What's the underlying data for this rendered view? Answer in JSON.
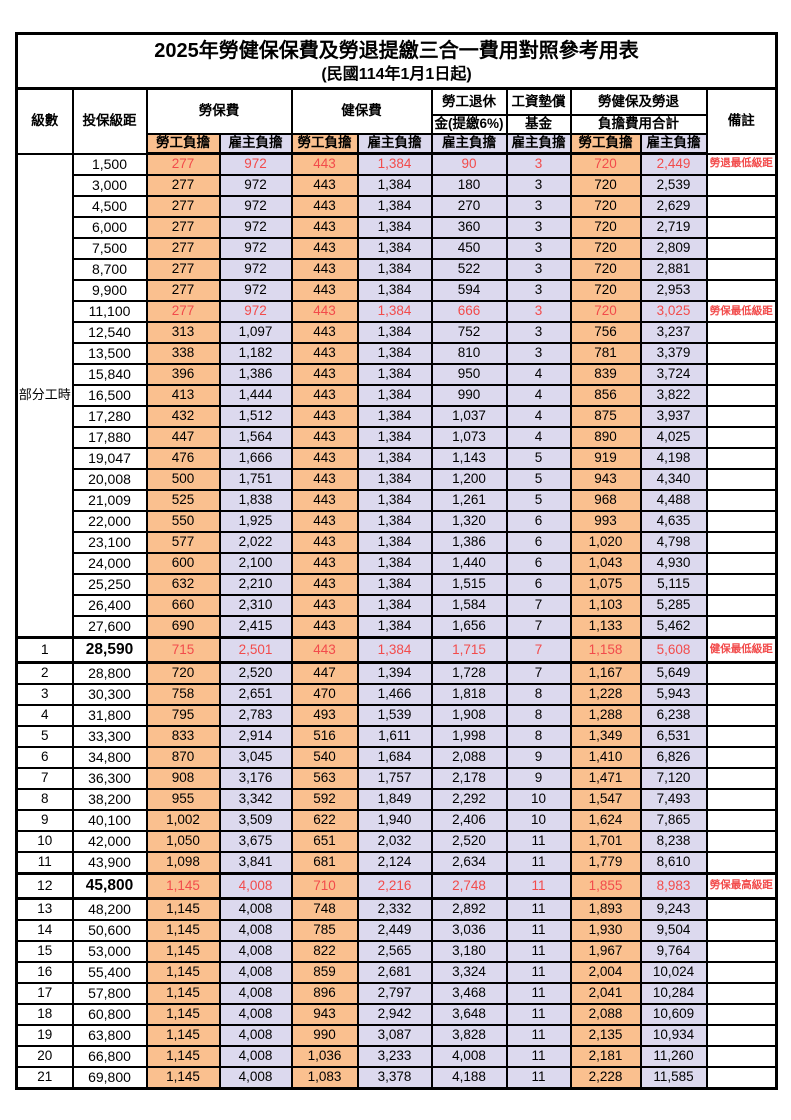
{
  "title": "2025年勞健保保費及勞退提繳三合一費用對照參考用表",
  "subtitle": "(民國114年1月1日起)",
  "colors": {
    "employee_column_bg": "#fac08f",
    "employer_column_bg": "#dcd9ee",
    "highlight_text": "#f24b4b",
    "border": "#000000"
  },
  "header": {
    "level": "級數",
    "bracket": "投保級距",
    "labor_fee": "勞保費",
    "health_fee": "健保費",
    "pension_line1": "勞工退休",
    "pension_line2": "金(提繳6%)",
    "wage_fund_line1": "工資墊償",
    "wage_fund_line2": "基金",
    "total_line1": "勞健保及勞退",
    "total_line2": "負擔費用合計",
    "remark": "備註",
    "employee_share": "勞工負擔",
    "employer_share": "雇主負擔"
  },
  "part_time_label": "部分工時",
  "part_time_rowspan": 23,
  "rows": [
    {
      "level": null,
      "bracket": "1,500",
      "values": [
        "277",
        "972",
        "443",
        "1,384",
        "90",
        "3",
        "720",
        "2,449"
      ],
      "note": "勞退最低級距",
      "red": true,
      "bold": false,
      "thick": false
    },
    {
      "level": null,
      "bracket": "3,000",
      "values": [
        "277",
        "972",
        "443",
        "1,384",
        "180",
        "3",
        "720",
        "2,539"
      ],
      "note": "",
      "red": false,
      "bold": false,
      "thick": false
    },
    {
      "level": null,
      "bracket": "4,500",
      "values": [
        "277",
        "972",
        "443",
        "1,384",
        "270",
        "3",
        "720",
        "2,629"
      ],
      "note": "",
      "red": false,
      "bold": false,
      "thick": false
    },
    {
      "level": null,
      "bracket": "6,000",
      "values": [
        "277",
        "972",
        "443",
        "1,384",
        "360",
        "3",
        "720",
        "2,719"
      ],
      "note": "",
      "red": false,
      "bold": false,
      "thick": false
    },
    {
      "level": null,
      "bracket": "7,500",
      "values": [
        "277",
        "972",
        "443",
        "1,384",
        "450",
        "3",
        "720",
        "2,809"
      ],
      "note": "",
      "red": false,
      "bold": false,
      "thick": false
    },
    {
      "level": null,
      "bracket": "8,700",
      "values": [
        "277",
        "972",
        "443",
        "1,384",
        "522",
        "3",
        "720",
        "2,881"
      ],
      "note": "",
      "red": false,
      "bold": false,
      "thick": false
    },
    {
      "level": null,
      "bracket": "9,900",
      "values": [
        "277",
        "972",
        "443",
        "1,384",
        "594",
        "3",
        "720",
        "2,953"
      ],
      "note": "",
      "red": false,
      "bold": false,
      "thick": false
    },
    {
      "level": null,
      "bracket": "11,100",
      "values": [
        "277",
        "972",
        "443",
        "1,384",
        "666",
        "3",
        "720",
        "3,025"
      ],
      "note": "勞保最低級距",
      "red": true,
      "bold": false,
      "thick": false
    },
    {
      "level": null,
      "bracket": "12,540",
      "values": [
        "313",
        "1,097",
        "443",
        "1,384",
        "752",
        "3",
        "756",
        "3,237"
      ],
      "note": "",
      "red": false,
      "bold": false,
      "thick": false
    },
    {
      "level": null,
      "bracket": "13,500",
      "values": [
        "338",
        "1,182",
        "443",
        "1,384",
        "810",
        "3",
        "781",
        "3,379"
      ],
      "note": "",
      "red": false,
      "bold": false,
      "thick": false
    },
    {
      "level": null,
      "bracket": "15,840",
      "values": [
        "396",
        "1,386",
        "443",
        "1,384",
        "950",
        "4",
        "839",
        "3,724"
      ],
      "note": "",
      "red": false,
      "bold": false,
      "thick": false
    },
    {
      "level": null,
      "bracket": "16,500",
      "values": [
        "413",
        "1,444",
        "443",
        "1,384",
        "990",
        "4",
        "856",
        "3,822"
      ],
      "note": "",
      "red": false,
      "bold": false,
      "thick": false
    },
    {
      "level": null,
      "bracket": "17,280",
      "values": [
        "432",
        "1,512",
        "443",
        "1,384",
        "1,037",
        "4",
        "875",
        "3,937"
      ],
      "note": "",
      "red": false,
      "bold": false,
      "thick": false
    },
    {
      "level": null,
      "bracket": "17,880",
      "values": [
        "447",
        "1,564",
        "443",
        "1,384",
        "1,073",
        "4",
        "890",
        "4,025"
      ],
      "note": "",
      "red": false,
      "bold": false,
      "thick": false
    },
    {
      "level": null,
      "bracket": "19,047",
      "values": [
        "476",
        "1,666",
        "443",
        "1,384",
        "1,143",
        "5",
        "919",
        "4,198"
      ],
      "note": "",
      "red": false,
      "bold": false,
      "thick": false
    },
    {
      "level": null,
      "bracket": "20,008",
      "values": [
        "500",
        "1,751",
        "443",
        "1,384",
        "1,200",
        "5",
        "943",
        "4,340"
      ],
      "note": "",
      "red": false,
      "bold": false,
      "thick": false
    },
    {
      "level": null,
      "bracket": "21,009",
      "values": [
        "525",
        "1,838",
        "443",
        "1,384",
        "1,261",
        "5",
        "968",
        "4,488"
      ],
      "note": "",
      "red": false,
      "bold": false,
      "thick": false
    },
    {
      "level": null,
      "bracket": "22,000",
      "values": [
        "550",
        "1,925",
        "443",
        "1,384",
        "1,320",
        "6",
        "993",
        "4,635"
      ],
      "note": "",
      "red": false,
      "bold": false,
      "thick": false
    },
    {
      "level": null,
      "bracket": "23,100",
      "values": [
        "577",
        "2,022",
        "443",
        "1,384",
        "1,386",
        "6",
        "1,020",
        "4,798"
      ],
      "note": "",
      "red": false,
      "bold": false,
      "thick": false
    },
    {
      "level": null,
      "bracket": "24,000",
      "values": [
        "600",
        "2,100",
        "443",
        "1,384",
        "1,440",
        "6",
        "1,043",
        "4,930"
      ],
      "note": "",
      "red": false,
      "bold": false,
      "thick": false
    },
    {
      "level": null,
      "bracket": "25,250",
      "values": [
        "632",
        "2,210",
        "443",
        "1,384",
        "1,515",
        "6",
        "1,075",
        "5,115"
      ],
      "note": "",
      "red": false,
      "bold": false,
      "thick": false
    },
    {
      "level": null,
      "bracket": "26,400",
      "values": [
        "660",
        "2,310",
        "443",
        "1,384",
        "1,584",
        "7",
        "1,103",
        "5,285"
      ],
      "note": "",
      "red": false,
      "bold": false,
      "thick": false
    },
    {
      "level": null,
      "bracket": "27,600",
      "values": [
        "690",
        "2,415",
        "443",
        "1,384",
        "1,656",
        "7",
        "1,133",
        "5,462"
      ],
      "note": "",
      "red": false,
      "bold": false,
      "thick": false
    },
    {
      "level": "1",
      "bracket": "28,590",
      "values": [
        "715",
        "2,501",
        "443",
        "1,384",
        "1,715",
        "7",
        "1,158",
        "5,608"
      ],
      "note": "健保最低級距",
      "red": true,
      "bold": true,
      "thick": true
    },
    {
      "level": "2",
      "bracket": "28,800",
      "values": [
        "720",
        "2,520",
        "447",
        "1,394",
        "1,728",
        "7",
        "1,167",
        "5,649"
      ],
      "note": "",
      "red": false,
      "bold": false,
      "thick": false
    },
    {
      "level": "3",
      "bracket": "30,300",
      "values": [
        "758",
        "2,651",
        "470",
        "1,466",
        "1,818",
        "8",
        "1,228",
        "5,943"
      ],
      "note": "",
      "red": false,
      "bold": false,
      "thick": false
    },
    {
      "level": "4",
      "bracket": "31,800",
      "values": [
        "795",
        "2,783",
        "493",
        "1,539",
        "1,908",
        "8",
        "1,288",
        "6,238"
      ],
      "note": "",
      "red": false,
      "bold": false,
      "thick": false
    },
    {
      "level": "5",
      "bracket": "33,300",
      "values": [
        "833",
        "2,914",
        "516",
        "1,611",
        "1,998",
        "8",
        "1,349",
        "6,531"
      ],
      "note": "",
      "red": false,
      "bold": false,
      "thick": false
    },
    {
      "level": "6",
      "bracket": "34,800",
      "values": [
        "870",
        "3,045",
        "540",
        "1,684",
        "2,088",
        "9",
        "1,410",
        "6,826"
      ],
      "note": "",
      "red": false,
      "bold": false,
      "thick": false
    },
    {
      "level": "7",
      "bracket": "36,300",
      "values": [
        "908",
        "3,176",
        "563",
        "1,757",
        "2,178",
        "9",
        "1,471",
        "7,120"
      ],
      "note": "",
      "red": false,
      "bold": false,
      "thick": false
    },
    {
      "level": "8",
      "bracket": "38,200",
      "values": [
        "955",
        "3,342",
        "592",
        "1,849",
        "2,292",
        "10",
        "1,547",
        "7,493"
      ],
      "note": "",
      "red": false,
      "bold": false,
      "thick": false
    },
    {
      "level": "9",
      "bracket": "40,100",
      "values": [
        "1,002",
        "3,509",
        "622",
        "1,940",
        "2,406",
        "10",
        "1,624",
        "7,865"
      ],
      "note": "",
      "red": false,
      "bold": false,
      "thick": false
    },
    {
      "level": "10",
      "bracket": "42,000",
      "values": [
        "1,050",
        "3,675",
        "651",
        "2,032",
        "2,520",
        "11",
        "1,701",
        "8,238"
      ],
      "note": "",
      "red": false,
      "bold": false,
      "thick": false
    },
    {
      "level": "11",
      "bracket": "43,900",
      "values": [
        "1,098",
        "3,841",
        "681",
        "2,124",
        "2,634",
        "11",
        "1,779",
        "8,610"
      ],
      "note": "",
      "red": false,
      "bold": false,
      "thick": false
    },
    {
      "level": "12",
      "bracket": "45,800",
      "values": [
        "1,145",
        "4,008",
        "710",
        "2,216",
        "2,748",
        "11",
        "1,855",
        "8,983"
      ],
      "note": "勞保最高級距",
      "red": true,
      "bold": true,
      "thick": true
    },
    {
      "level": "13",
      "bracket": "48,200",
      "values": [
        "1,145",
        "4,008",
        "748",
        "2,332",
        "2,892",
        "11",
        "1,893",
        "9,243"
      ],
      "note": "",
      "red": false,
      "bold": false,
      "thick": false
    },
    {
      "level": "14",
      "bracket": "50,600",
      "values": [
        "1,145",
        "4,008",
        "785",
        "2,449",
        "3,036",
        "11",
        "1,930",
        "9,504"
      ],
      "note": "",
      "red": false,
      "bold": false,
      "thick": false
    },
    {
      "level": "15",
      "bracket": "53,000",
      "values": [
        "1,145",
        "4,008",
        "822",
        "2,565",
        "3,180",
        "11",
        "1,967",
        "9,764"
      ],
      "note": "",
      "red": false,
      "bold": false,
      "thick": false
    },
    {
      "level": "16",
      "bracket": "55,400",
      "values": [
        "1,145",
        "4,008",
        "859",
        "2,681",
        "3,324",
        "11",
        "2,004",
        "10,024"
      ],
      "note": "",
      "red": false,
      "bold": false,
      "thick": false
    },
    {
      "level": "17",
      "bracket": "57,800",
      "values": [
        "1,145",
        "4,008",
        "896",
        "2,797",
        "3,468",
        "11",
        "2,041",
        "10,284"
      ],
      "note": "",
      "red": false,
      "bold": false,
      "thick": false
    },
    {
      "level": "18",
      "bracket": "60,800",
      "values": [
        "1,145",
        "4,008",
        "943",
        "2,942",
        "3,648",
        "11",
        "2,088",
        "10,609"
      ],
      "note": "",
      "red": false,
      "bold": false,
      "thick": false
    },
    {
      "level": "19",
      "bracket": "63,800",
      "values": [
        "1,145",
        "4,008",
        "990",
        "3,087",
        "3,828",
        "11",
        "2,135",
        "10,934"
      ],
      "note": "",
      "red": false,
      "bold": false,
      "thick": false
    },
    {
      "level": "20",
      "bracket": "66,800",
      "values": [
        "1,145",
        "4,008",
        "1,036",
        "3,233",
        "4,008",
        "11",
        "2,181",
        "11,260"
      ],
      "note": "",
      "red": false,
      "bold": false,
      "thick": false
    },
    {
      "level": "21",
      "bracket": "69,800",
      "values": [
        "1,145",
        "4,008",
        "1,083",
        "3,378",
        "4,188",
        "11",
        "2,228",
        "11,585"
      ],
      "note": "",
      "red": false,
      "bold": false,
      "thick": false
    }
  ]
}
